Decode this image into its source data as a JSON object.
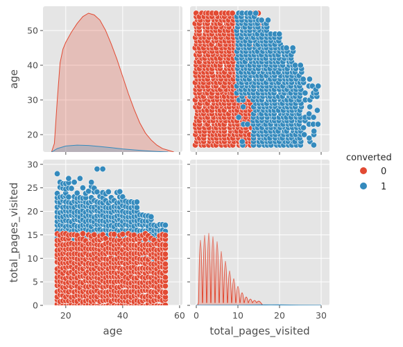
{
  "chart_data": {
    "type": "scatter",
    "title": "",
    "variables": [
      "age",
      "total_pages_visited"
    ],
    "hue": {
      "name": "converted",
      "levels": [
        {
          "label": "0",
          "color": "#E24A33"
        },
        {
          "label": "1",
          "color": "#348ABD"
        }
      ]
    },
    "axes": {
      "age": {
        "label": "age",
        "range": [
          12,
          61
        ],
        "ticks": [
          20,
          40,
          60
        ],
        "y_range": [
          15,
          57
        ],
        "y_ticks": [
          20,
          30,
          40,
          50
        ]
      },
      "total_pages_visited": {
        "label": "total_pages_visited",
        "range": [
          -1.5,
          32
        ],
        "ticks": [
          0,
          10,
          20,
          30
        ],
        "y_range": [
          0,
          31
        ],
        "y_ticks": [
          0,
          5,
          10,
          15,
          20,
          25,
          30
        ]
      }
    },
    "diagonal": [
      {
        "variable": "age",
        "kind": "kde",
        "series": [
          {
            "name": "0",
            "x": [
              15,
              16,
              17,
              18,
              19,
              20,
              22,
              24,
              26,
              28,
              30,
              32,
              34,
              36,
              38,
              40,
              42,
              44,
              46,
              48,
              50,
              52,
              54,
              56,
              58
            ],
            "density": [
              0.0,
              0.005,
              0.03,
              0.052,
              0.06,
              0.064,
              0.07,
              0.075,
              0.079,
              0.081,
              0.08,
              0.077,
              0.071,
              0.063,
              0.054,
              0.044,
              0.034,
              0.025,
              0.017,
              0.011,
              0.007,
              0.004,
              0.002,
              0.001,
              0.0
            ]
          },
          {
            "name": "1",
            "x": [
              15,
              17,
              20,
              24,
              28,
              32,
              36,
              40,
              44,
              48,
              52,
              56
            ],
            "density": [
              0.0,
              0.002,
              0.0035,
              0.004,
              0.0038,
              0.0032,
              0.0025,
              0.0018,
              0.0012,
              0.0007,
              0.0003,
              0.0
            ]
          }
        ]
      },
      {
        "variable": "total_pages_visited",
        "kind": "kde",
        "series": [
          {
            "name": "0",
            "peaks": [
              [
                1,
                0.88
              ],
              [
                2,
                0.95
              ],
              [
                3,
                0.98
              ],
              [
                4,
                0.93
              ],
              [
                5,
                0.86
              ],
              [
                6,
                0.72
              ],
              [
                7,
                0.58
              ],
              [
                8,
                0.44
              ],
              [
                9,
                0.33
              ],
              [
                10,
                0.22
              ],
              [
                11,
                0.13
              ],
              [
                12,
                0.07
              ],
              [
                13,
                0.04
              ],
              [
                14,
                0.02
              ],
              [
                15,
                0.01
              ]
            ]
          },
          {
            "name": "1",
            "x": [
              0,
              5,
              10,
              15,
              18,
              20,
              25,
              30
            ],
            "density": [
              0.0,
              0.001,
              0.004,
              0.009,
              0.012,
              0.01,
              0.004,
              0.0
            ]
          }
        ]
      }
    ],
    "scatter": [
      {
        "x": "total_pages_visited",
        "y": "age",
        "series": [
          {
            "name": "0",
            "x_range": [
              0,
              15
            ],
            "y_range": [
              17,
              55
            ]
          },
          {
            "name": "1",
            "x_range": [
              10,
              29
            ],
            "y_range": [
              17,
              55
            ]
          }
        ]
      },
      {
        "x": "age",
        "y": "total_pages_visited",
        "series": [
          {
            "name": "0",
            "x_range": [
              17,
              55
            ],
            "y_range": [
              0,
              15
            ]
          },
          {
            "name": "1",
            "x_range": [
              17,
              55
            ],
            "y_range": [
              10,
              29
            ]
          }
        ]
      }
    ],
    "grid": true,
    "legend_placement": "right"
  }
}
